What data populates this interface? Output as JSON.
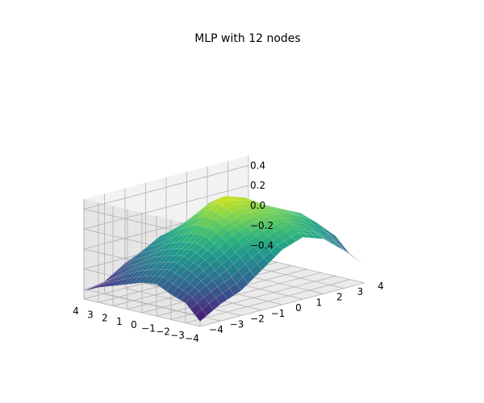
{
  "chart_data": {
    "type": "surface",
    "title": "MLP with 12 nodes",
    "xlabel": "",
    "ylabel": "",
    "zlabel": "",
    "grid": true,
    "colormap": "viridis",
    "colors": {
      "pane_back": "#f2f2f2",
      "pane_side": "#e6e6e6",
      "pane_floor": "#ebebeb",
      "grid": "#b0b0b0",
      "axis": "#000000",
      "viridis": [
        "#440154",
        "#482878",
        "#3e4989",
        "#31688e",
        "#26828e",
        "#1f9e89",
        "#35b779",
        "#6ece58",
        "#b5de2b",
        "#fde725"
      ]
    },
    "x_range": [
      -4,
      4
    ],
    "y_range": [
      -4,
      4
    ],
    "z_range": [
      -0.5,
      0.5
    ],
    "x_ticks": [
      "−4",
      "−3",
      "−2",
      "−1",
      "0",
      "1",
      "2",
      "3",
      "4"
    ],
    "y_ticks": [
      "−4",
      "−3",
      "−2",
      "−1",
      "0",
      "1",
      "2",
      "3",
      "4"
    ],
    "z_ticks": [
      "−0.4",
      "−0.2",
      "0.0",
      "0.2",
      "0.4"
    ],
    "surface": {
      "x": [
        -4,
        -3,
        -2,
        -1,
        0,
        1,
        2,
        3,
        4
      ],
      "y": [
        -4,
        -3,
        -2,
        -1,
        0,
        1,
        2,
        3,
        4
      ],
      "z": [
        [
          -0.45,
          -0.33,
          -0.25,
          -0.1,
          0.05,
          0.12,
          0.05,
          -0.12,
          -0.32
        ],
        [
          -0.3,
          -0.18,
          -0.08,
          0.05,
          0.15,
          0.22,
          0.12,
          -0.02,
          -0.25
        ],
        [
          -0.25,
          -0.08,
          0.05,
          0.18,
          0.25,
          0.28,
          0.22,
          0.1,
          -0.1
        ],
        [
          -0.18,
          -0.02,
          0.12,
          0.28,
          0.35,
          0.32,
          0.25,
          0.15,
          -0.05
        ],
        [
          -0.2,
          -0.05,
          0.1,
          0.3,
          0.45,
          0.38,
          0.25,
          0.12,
          -0.1
        ],
        [
          -0.25,
          -0.1,
          0.05,
          0.22,
          0.35,
          0.28,
          0.18,
          0.05,
          -0.18
        ],
        [
          -0.3,
          -0.18,
          -0.05,
          0.1,
          0.2,
          0.15,
          0.05,
          -0.1,
          -0.3
        ],
        [
          -0.35,
          -0.28,
          -0.12,
          0.0,
          0.05,
          0.0,
          -0.1,
          -0.25,
          -0.42
        ],
        [
          -0.42,
          -0.38,
          -0.25,
          -0.15,
          -0.1,
          -0.12,
          -0.22,
          -0.38,
          -0.5
        ]
      ]
    }
  }
}
